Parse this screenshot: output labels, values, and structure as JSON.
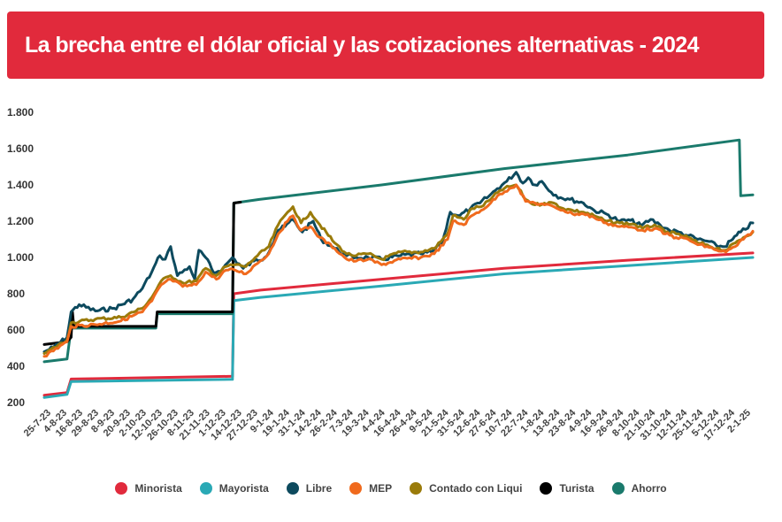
{
  "header": {
    "title": "La brecha entre el dólar oficial y las cotizaciones alternativas - 2024"
  },
  "chart_data": {
    "type": "line",
    "title": "La brecha entre el dólar oficial y las cotizaciones alternativas - 2024",
    "xlabel": "",
    "ylabel": "",
    "ylim": [
      200,
      1800
    ],
    "yticks": [
      "200",
      "400",
      "600",
      "800",
      "1.000",
      "1.200",
      "1.400",
      "1.600",
      "1.800"
    ],
    "ytick_values": [
      200,
      400,
      600,
      800,
      1000,
      1200,
      1400,
      1600,
      1800
    ],
    "grid": false,
    "legend_position": "bottom",
    "x_date_range": [
      "2023-07-25",
      "2025-01-02"
    ],
    "x_tick_labels": [
      "25-7-23",
      "4-8-23",
      "16-8-23",
      "29-8-23",
      "8-9-23",
      "20-9-23",
      "2-10-23",
      "12-10-23",
      "26-10-23",
      "8-11-23",
      "21-11-23",
      "1-12-23",
      "14-12-23",
      "27-12-23",
      "9-1-24",
      "19-1-24",
      "31-1-24",
      "14-2-24",
      "26-2-24",
      "7-3-24",
      "19-3-24",
      "4-4-24",
      "16-4-24",
      "26-4-24",
      "9-5-24",
      "21-5-24",
      "31-5-24",
      "12-6-24",
      "27-6-24",
      "10-7-24",
      "22-7-24",
      "1-8-24",
      "13-8-24",
      "23-8-24",
      "4-9-24",
      "16-9-24",
      "26-9-24",
      "8-10-24",
      "21-10-24",
      "31-10-24",
      "12-11-24",
      "25-11-24",
      "5-12-24",
      "17-12-24",
      "2-1-25"
    ],
    "series": [
      {
        "name": "Minorista",
        "color": "#e12a3c",
        "points": [
          [
            "2023-07-25",
            240
          ],
          [
            "2023-08-11",
            255
          ],
          [
            "2023-08-14",
            330
          ],
          [
            "2023-12-12",
            345
          ],
          [
            "2023-12-13",
            800
          ],
          [
            "2024-01-02",
            820
          ],
          [
            "2024-04-01",
            880
          ],
          [
            "2024-07-01",
            940
          ],
          [
            "2024-10-01",
            985
          ],
          [
            "2025-01-02",
            1025
          ]
        ]
      },
      {
        "name": "Mayorista",
        "color": "#2aa9b5",
        "points": [
          [
            "2023-07-25",
            228
          ],
          [
            "2023-08-11",
            245
          ],
          [
            "2023-08-14",
            316
          ],
          [
            "2023-12-12",
            328
          ],
          [
            "2023-12-13",
            762
          ],
          [
            "2024-01-02",
            780
          ],
          [
            "2024-04-01",
            843
          ],
          [
            "2024-07-01",
            910
          ],
          [
            "2024-10-01",
            955
          ],
          [
            "2025-01-02",
            1000
          ]
        ]
      },
      {
        "name": "Libre",
        "color": "#0d4a5e",
        "points": [
          [
            "2023-07-25",
            480
          ],
          [
            "2023-08-01",
            505
          ],
          [
            "2023-08-11",
            560
          ],
          [
            "2023-08-14",
            700
          ],
          [
            "2023-08-20",
            740
          ],
          [
            "2023-09-01",
            705
          ],
          [
            "2023-09-15",
            720
          ],
          [
            "2023-09-29",
            770
          ],
          [
            "2023-10-06",
            830
          ],
          [
            "2023-10-13",
            920
          ],
          [
            "2023-10-19",
            1010
          ],
          [
            "2023-10-23",
            990
          ],
          [
            "2023-10-27",
            1060
          ],
          [
            "2023-11-01",
            900
          ],
          [
            "2023-11-10",
            950
          ],
          [
            "2023-11-14",
            880
          ],
          [
            "2023-11-17",
            1040
          ],
          [
            "2023-11-22",
            1000
          ],
          [
            "2023-11-28",
            915
          ],
          [
            "2023-12-05",
            940
          ],
          [
            "2023-12-12",
            1000
          ],
          [
            "2023-12-20",
            940
          ],
          [
            "2023-12-28",
            980
          ],
          [
            "2024-01-05",
            1000
          ],
          [
            "2024-01-10",
            1060
          ],
          [
            "2024-01-15",
            1150
          ],
          [
            "2024-01-20",
            1170
          ],
          [
            "2024-01-26",
            1210
          ],
          [
            "2024-02-02",
            1140
          ],
          [
            "2024-02-10",
            1200
          ],
          [
            "2024-02-16",
            1100
          ],
          [
            "2024-02-26",
            1050
          ],
          [
            "2024-03-06",
            1010
          ],
          [
            "2024-03-13",
            1000
          ],
          [
            "2024-03-22",
            1000
          ],
          [
            "2024-04-01",
            990
          ],
          [
            "2024-04-15",
            1010
          ],
          [
            "2024-04-30",
            1020
          ],
          [
            "2024-05-08",
            1030
          ],
          [
            "2024-05-16",
            1080
          ],
          [
            "2024-05-22",
            1250
          ],
          [
            "2024-05-29",
            1230
          ],
          [
            "2024-06-06",
            1270
          ],
          [
            "2024-06-13",
            1300
          ],
          [
            "2024-06-20",
            1340
          ],
          [
            "2024-06-26",
            1380
          ],
          [
            "2024-07-03",
            1420
          ],
          [
            "2024-07-10",
            1470
          ],
          [
            "2024-07-15",
            1410
          ],
          [
            "2024-07-19",
            1440
          ],
          [
            "2024-07-24",
            1400
          ],
          [
            "2024-07-29",
            1420
          ],
          [
            "2024-08-05",
            1360
          ],
          [
            "2024-08-12",
            1330
          ],
          [
            "2024-08-19",
            1320
          ],
          [
            "2024-08-29",
            1300
          ],
          [
            "2024-09-06",
            1260
          ],
          [
            "2024-09-15",
            1240
          ],
          [
            "2024-09-25",
            1200
          ],
          [
            "2024-10-03",
            1205
          ],
          [
            "2024-10-11",
            1175
          ],
          [
            "2024-10-18",
            1210
          ],
          [
            "2024-10-25",
            1180
          ],
          [
            "2024-11-01",
            1150
          ],
          [
            "2024-11-08",
            1140
          ],
          [
            "2024-11-15",
            1120
          ],
          [
            "2024-11-22",
            1100
          ],
          [
            "2024-11-29",
            1090
          ],
          [
            "2024-12-06",
            1065
          ],
          [
            "2024-12-12",
            1060
          ],
          [
            "2024-12-18",
            1100
          ],
          [
            "2024-12-24",
            1140
          ],
          [
            "2025-01-02",
            1190
          ]
        ]
      },
      {
        "name": "MEP",
        "color": "#f06a1d",
        "points": [
          [
            "2023-07-25",
            455
          ],
          [
            "2023-08-11",
            535
          ],
          [
            "2023-08-14",
            620
          ],
          [
            "2023-09-01",
            630
          ],
          [
            "2023-09-20",
            650
          ],
          [
            "2023-10-06",
            700
          ],
          [
            "2023-10-13",
            760
          ],
          [
            "2023-10-20",
            850
          ],
          [
            "2023-10-27",
            880
          ],
          [
            "2023-11-05",
            840
          ],
          [
            "2023-11-15",
            850
          ],
          [
            "2023-11-22",
            920
          ],
          [
            "2023-11-30",
            880
          ],
          [
            "2023-12-07",
            930
          ],
          [
            "2023-12-14",
            930
          ],
          [
            "2023-12-22",
            910
          ],
          [
            "2023-12-29",
            960
          ],
          [
            "2024-01-08",
            1020
          ],
          [
            "2024-01-15",
            1130
          ],
          [
            "2024-01-22",
            1200
          ],
          [
            "2024-01-26",
            1230
          ],
          [
            "2024-02-01",
            1150
          ],
          [
            "2024-02-08",
            1170
          ],
          [
            "2024-02-15",
            1110
          ],
          [
            "2024-02-26",
            1050
          ],
          [
            "2024-03-06",
            990
          ],
          [
            "2024-03-13",
            980
          ],
          [
            "2024-03-22",
            990
          ],
          [
            "2024-04-01",
            960
          ],
          [
            "2024-04-15",
            990
          ],
          [
            "2024-04-30",
            1000
          ],
          [
            "2024-05-10",
            1020
          ],
          [
            "2024-05-20",
            1100
          ],
          [
            "2024-05-24",
            1200
          ],
          [
            "2024-06-01",
            1180
          ],
          [
            "2024-06-07",
            1230
          ],
          [
            "2024-06-14",
            1260
          ],
          [
            "2024-06-21",
            1300
          ],
          [
            "2024-06-28",
            1350
          ],
          [
            "2024-07-05",
            1380
          ],
          [
            "2024-07-10",
            1400
          ],
          [
            "2024-07-17",
            1310
          ],
          [
            "2024-07-24",
            1300
          ],
          [
            "2024-07-31",
            1290
          ],
          [
            "2024-08-07",
            1280
          ],
          [
            "2024-08-14",
            1260
          ],
          [
            "2024-08-21",
            1240
          ],
          [
            "2024-08-29",
            1240
          ],
          [
            "2024-09-06",
            1220
          ],
          [
            "2024-09-15",
            1190
          ],
          [
            "2024-09-25",
            1170
          ],
          [
            "2024-10-05",
            1165
          ],
          [
            "2024-10-12",
            1150
          ],
          [
            "2024-10-21",
            1160
          ],
          [
            "2024-10-29",
            1130
          ],
          [
            "2024-11-06",
            1110
          ],
          [
            "2024-11-15",
            1100
          ],
          [
            "2024-11-22",
            1070
          ],
          [
            "2024-11-29",
            1060
          ],
          [
            "2024-12-06",
            1040
          ],
          [
            "2024-12-13",
            1030
          ],
          [
            "2024-12-20",
            1060
          ],
          [
            "2024-12-26",
            1100
          ],
          [
            "2025-01-02",
            1145
          ]
        ]
      },
      {
        "name": "Contado con Liqui",
        "color": "#9a7b0a",
        "points": [
          [
            "2023-07-25",
            470
          ],
          [
            "2023-08-11",
            545
          ],
          [
            "2023-08-14",
            640
          ],
          [
            "2023-09-01",
            660
          ],
          [
            "2023-09-20",
            670
          ],
          [
            "2023-10-06",
            720
          ],
          [
            "2023-10-13",
            780
          ],
          [
            "2023-10-20",
            870
          ],
          [
            "2023-10-27",
            900
          ],
          [
            "2023-11-05",
            860
          ],
          [
            "2023-11-15",
            870
          ],
          [
            "2023-11-22",
            940
          ],
          [
            "2023-11-30",
            900
          ],
          [
            "2023-12-07",
            950
          ],
          [
            "2023-12-14",
            960
          ],
          [
            "2023-12-22",
            950
          ],
          [
            "2023-12-29",
            1000
          ],
          [
            "2024-01-08",
            1060
          ],
          [
            "2024-01-15",
            1180
          ],
          [
            "2024-01-22",
            1250
          ],
          [
            "2024-01-26",
            1280
          ],
          [
            "2024-02-01",
            1190
          ],
          [
            "2024-02-08",
            1250
          ],
          [
            "2024-02-15",
            1180
          ],
          [
            "2024-02-26",
            1080
          ],
          [
            "2024-03-06",
            1020
          ],
          [
            "2024-03-13",
            1010
          ],
          [
            "2024-03-22",
            1020
          ],
          [
            "2024-04-01",
            990
          ],
          [
            "2024-04-15",
            1030
          ],
          [
            "2024-04-30",
            1030
          ],
          [
            "2024-05-10",
            1050
          ],
          [
            "2024-05-20",
            1130
          ],
          [
            "2024-05-24",
            1230
          ],
          [
            "2024-06-01",
            1210
          ],
          [
            "2024-06-07",
            1270
          ],
          [
            "2024-06-14",
            1280
          ],
          [
            "2024-06-21",
            1320
          ],
          [
            "2024-06-28",
            1370
          ],
          [
            "2024-07-05",
            1390
          ],
          [
            "2024-07-10",
            1400
          ],
          [
            "2024-07-17",
            1320
          ],
          [
            "2024-07-24",
            1290
          ],
          [
            "2024-07-31",
            1300
          ],
          [
            "2024-08-07",
            1300
          ],
          [
            "2024-08-14",
            1270
          ],
          [
            "2024-08-21",
            1260
          ],
          [
            "2024-08-29",
            1250
          ],
          [
            "2024-09-06",
            1230
          ],
          [
            "2024-09-15",
            1200
          ],
          [
            "2024-09-25",
            1190
          ],
          [
            "2024-10-05",
            1185
          ],
          [
            "2024-10-12",
            1160
          ],
          [
            "2024-10-21",
            1180
          ],
          [
            "2024-10-29",
            1140
          ],
          [
            "2024-11-06",
            1130
          ],
          [
            "2024-11-15",
            1110
          ],
          [
            "2024-11-22",
            1080
          ],
          [
            "2024-11-29",
            1070
          ],
          [
            "2024-12-06",
            1050
          ],
          [
            "2024-12-13",
            1040
          ],
          [
            "2024-12-20",
            1080
          ],
          [
            "2024-12-26",
            1110
          ],
          [
            "2025-01-02",
            1140
          ]
        ]
      },
      {
        "name": "Turista",
        "color": "#000000",
        "points": [
          [
            "2023-07-25",
            520
          ],
          [
            "2023-08-11",
            535
          ],
          [
            "2023-08-14",
            560
          ],
          [
            "2023-08-15",
            700
          ],
          [
            "2023-08-16",
            620
          ],
          [
            "2023-10-16",
            620
          ],
          [
            "2023-10-17",
            700
          ],
          [
            "2023-12-12",
            700
          ],
          [
            "2023-12-13",
            1300
          ],
          [
            "2023-12-18",
            1305
          ]
        ]
      },
      {
        "name": "Ahorro",
        "color": "#1a7a6c",
        "points": [
          [
            "2023-07-25",
            425
          ],
          [
            "2023-08-11",
            440
          ],
          [
            "2023-08-14",
            610
          ],
          [
            "2023-10-16",
            610
          ],
          [
            "2023-10-17",
            690
          ],
          [
            "2023-12-12",
            690
          ],
          [
            "2023-12-13",
            1300
          ],
          [
            "2024-01-01",
            1320
          ],
          [
            "2024-04-01",
            1400
          ],
          [
            "2024-07-01",
            1490
          ],
          [
            "2024-10-01",
            1565
          ],
          [
            "2024-12-20",
            1645
          ],
          [
            "2024-12-23",
            1648
          ],
          [
            "2024-12-24",
            1340
          ],
          [
            "2025-01-02",
            1345
          ]
        ]
      }
    ]
  },
  "legend": {
    "items": [
      {
        "label": "Minorista",
        "color": "#e12a3c"
      },
      {
        "label": "Mayorista",
        "color": "#2aa9b5"
      },
      {
        "label": "Libre",
        "color": "#0d4a5e"
      },
      {
        "label": "MEP",
        "color": "#f06a1d"
      },
      {
        "label": "Contado con Liqui",
        "color": "#9a7b0a"
      },
      {
        "label": "Turista",
        "color": "#000000"
      },
      {
        "label": "Ahorro",
        "color": "#1a7a6c"
      }
    ]
  }
}
